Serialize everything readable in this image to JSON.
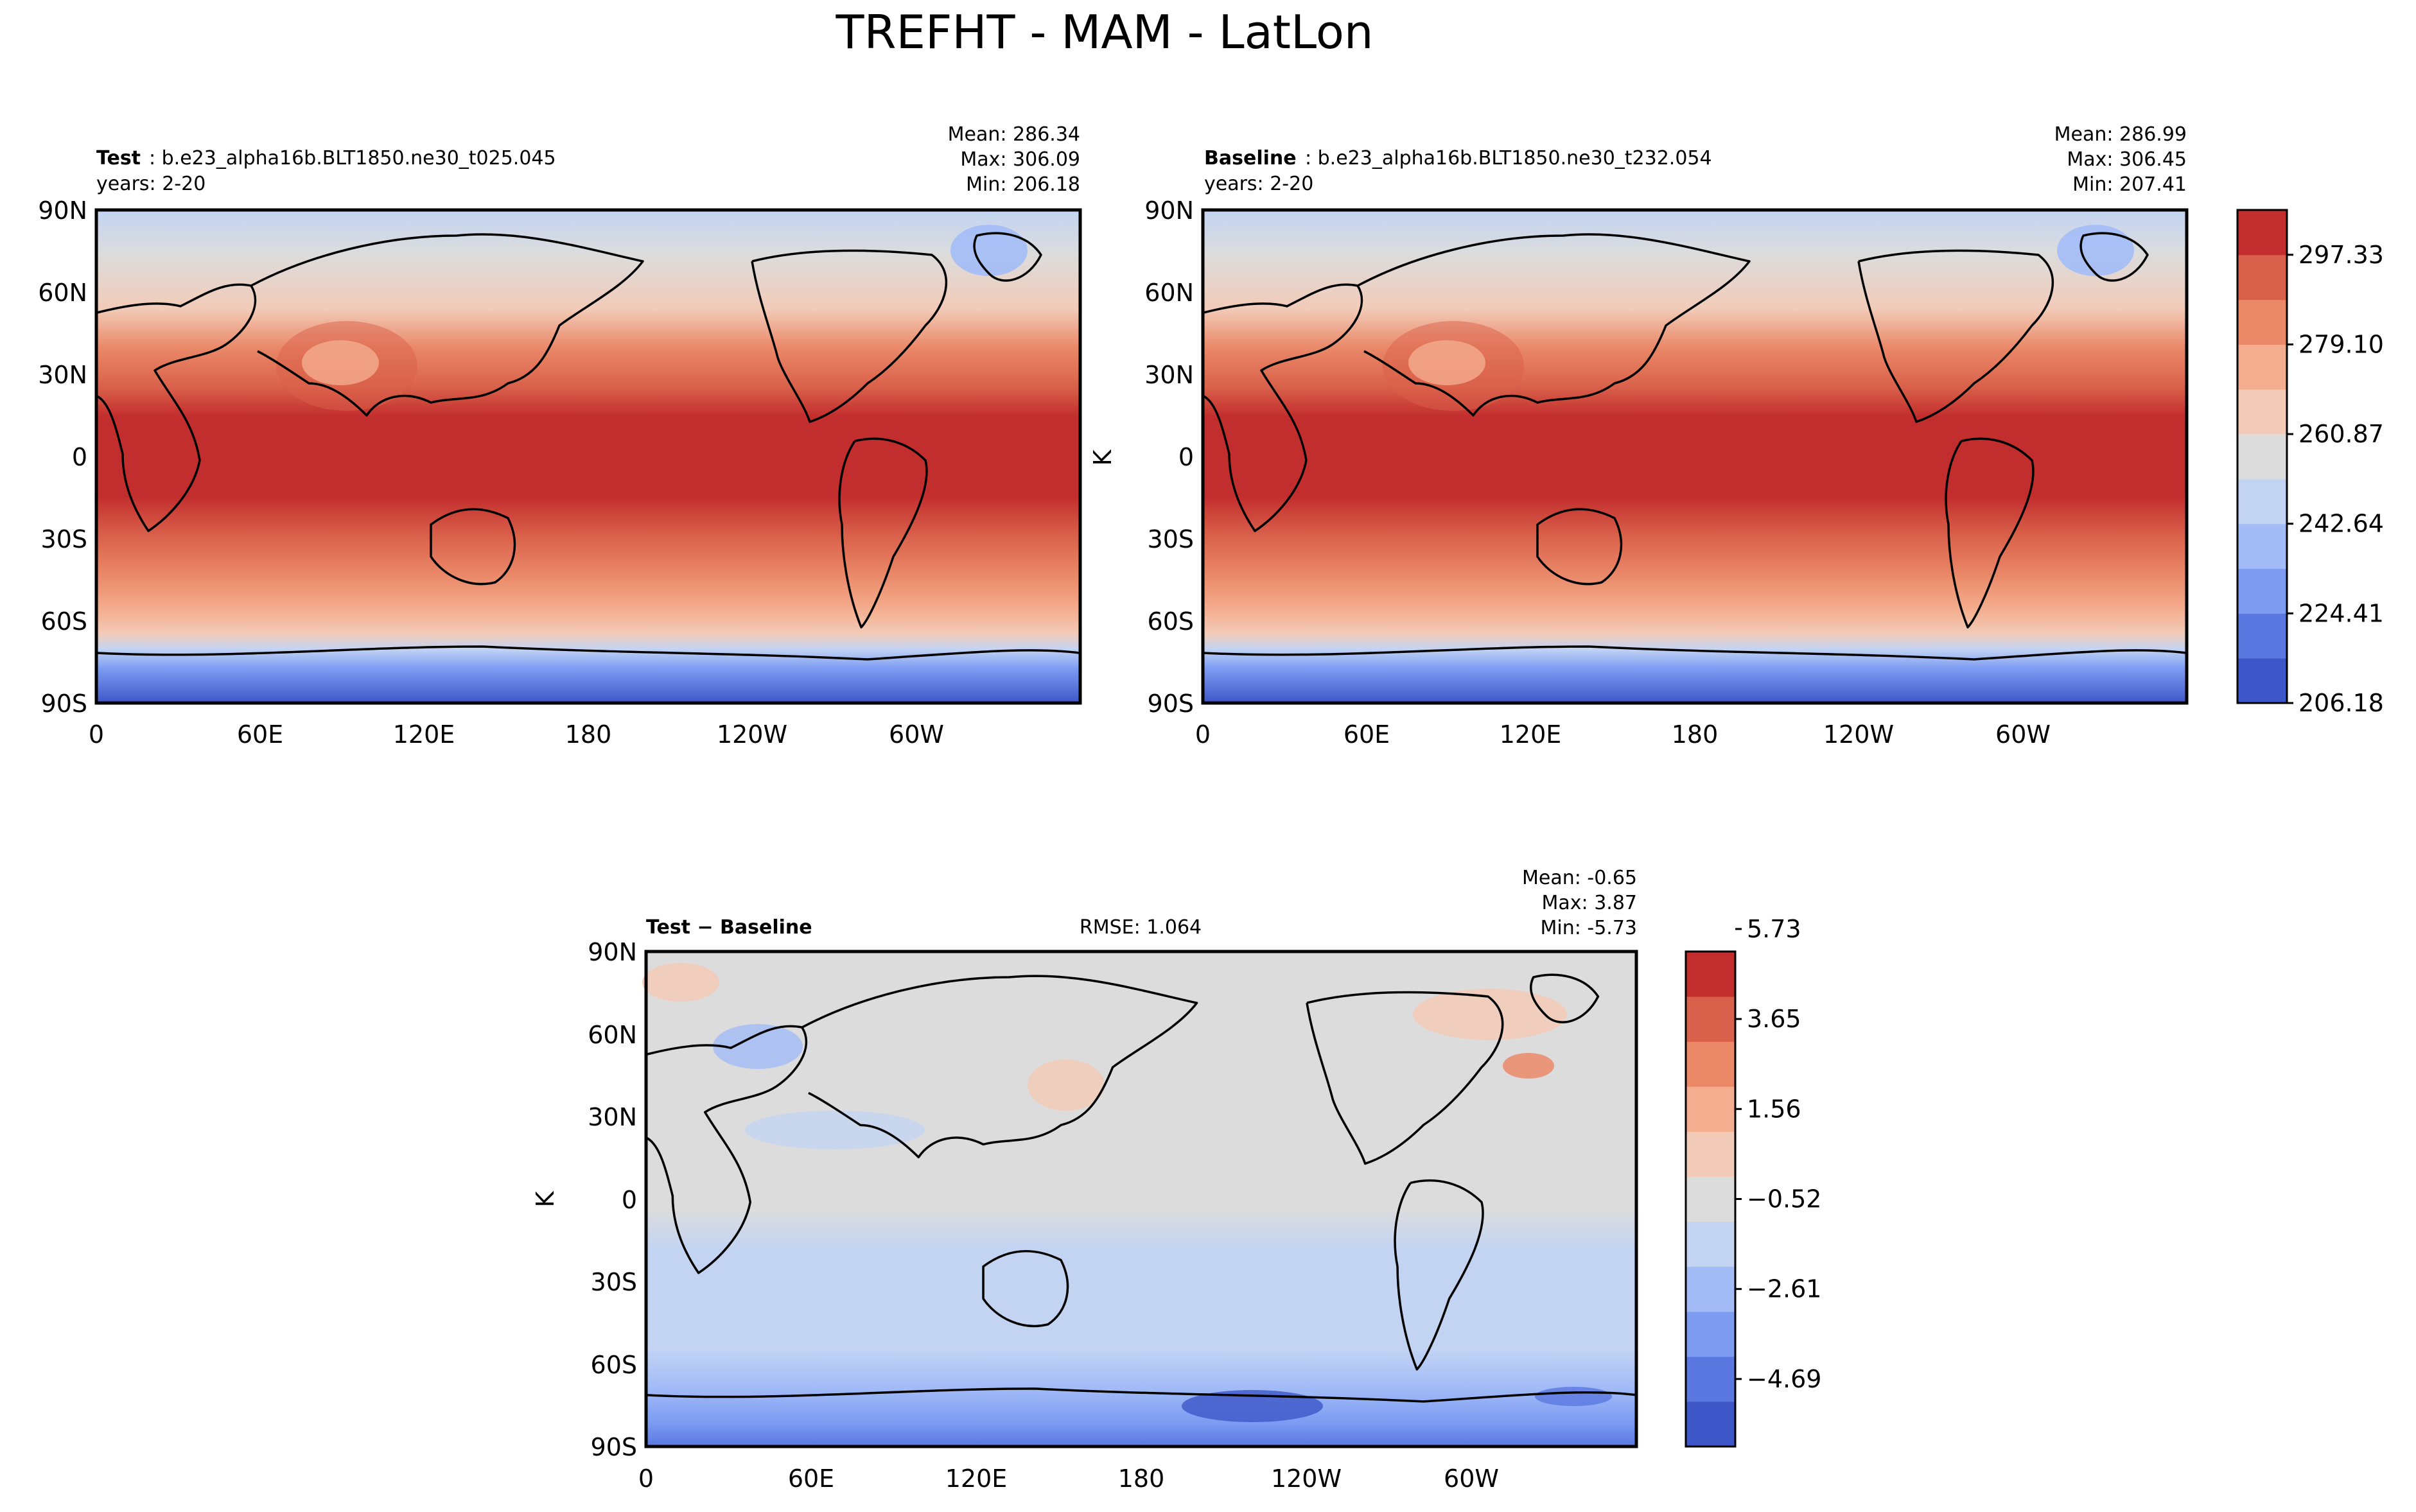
{
  "figure": {
    "title": "TREFHT - MAM - LatLon"
  },
  "panels": [
    {
      "id": "test",
      "label_bold": "Test",
      "label_rest": ": b.e23_alpha16b.BLT1850.ne30_t025.045",
      "years": "years: 2-20",
      "mean": "Mean: 286.34",
      "max": "Max: 306.09",
      "min": "Min: 206.18",
      "ylabel": ""
    },
    {
      "id": "baseline",
      "label_bold": "Baseline",
      "label_rest": ": b.e23_alpha16b.BLT1850.ne30_t232.054",
      "years": "years: 2-20",
      "mean": "Mean: 286.99",
      "max": "Max: 306.45",
      "min": "Min: 207.41",
      "ylabel": "K"
    },
    {
      "id": "diff",
      "label_bold": "Test − Baseline",
      "label_rest": "",
      "rmse": "RMSE: 1.064",
      "mean": "Mean: -0.65",
      "max": "Max:  3.87",
      "min": "Min: -5.73",
      "ylabel": "K"
    }
  ],
  "axes": {
    "lat_ticks": [
      "90N",
      "60N",
      "30N",
      "0",
      "30S",
      "60S",
      "90S"
    ],
    "lon_ticks": [
      "0",
      "60E",
      "120E",
      "180",
      "120W",
      "60W"
    ]
  },
  "colorbar_main": {
    "colors": [
      "#3d56c8",
      "#5a78e0",
      "#7d9cf2",
      "#a3bcf7",
      "#c3d4f3",
      "#dcdcdc",
      "#f2cbb8",
      "#f4ad8e",
      "#ea8868",
      "#d9604a",
      "#c22d2d"
    ],
    "tick_labels": [
      "206.18",
      "224.41",
      "242.64",
      "260.87",
      "279.10",
      "297.33"
    ]
  },
  "colorbar_diff": {
    "colors": [
      "#3d56c8",
      "#5a78e0",
      "#7d9cf2",
      "#a3bcf7",
      "#c3d4f3",
      "#dcdcdc",
      "#f2cbb8",
      "#f4ad8e",
      "#ea8868",
      "#d9604a",
      "#c22d2d"
    ],
    "tick_labels": [
      "−4.69",
      "−2.61",
      "−0.52",
      "1.56",
      "3.65",
      "5.73"
    ]
  }
}
